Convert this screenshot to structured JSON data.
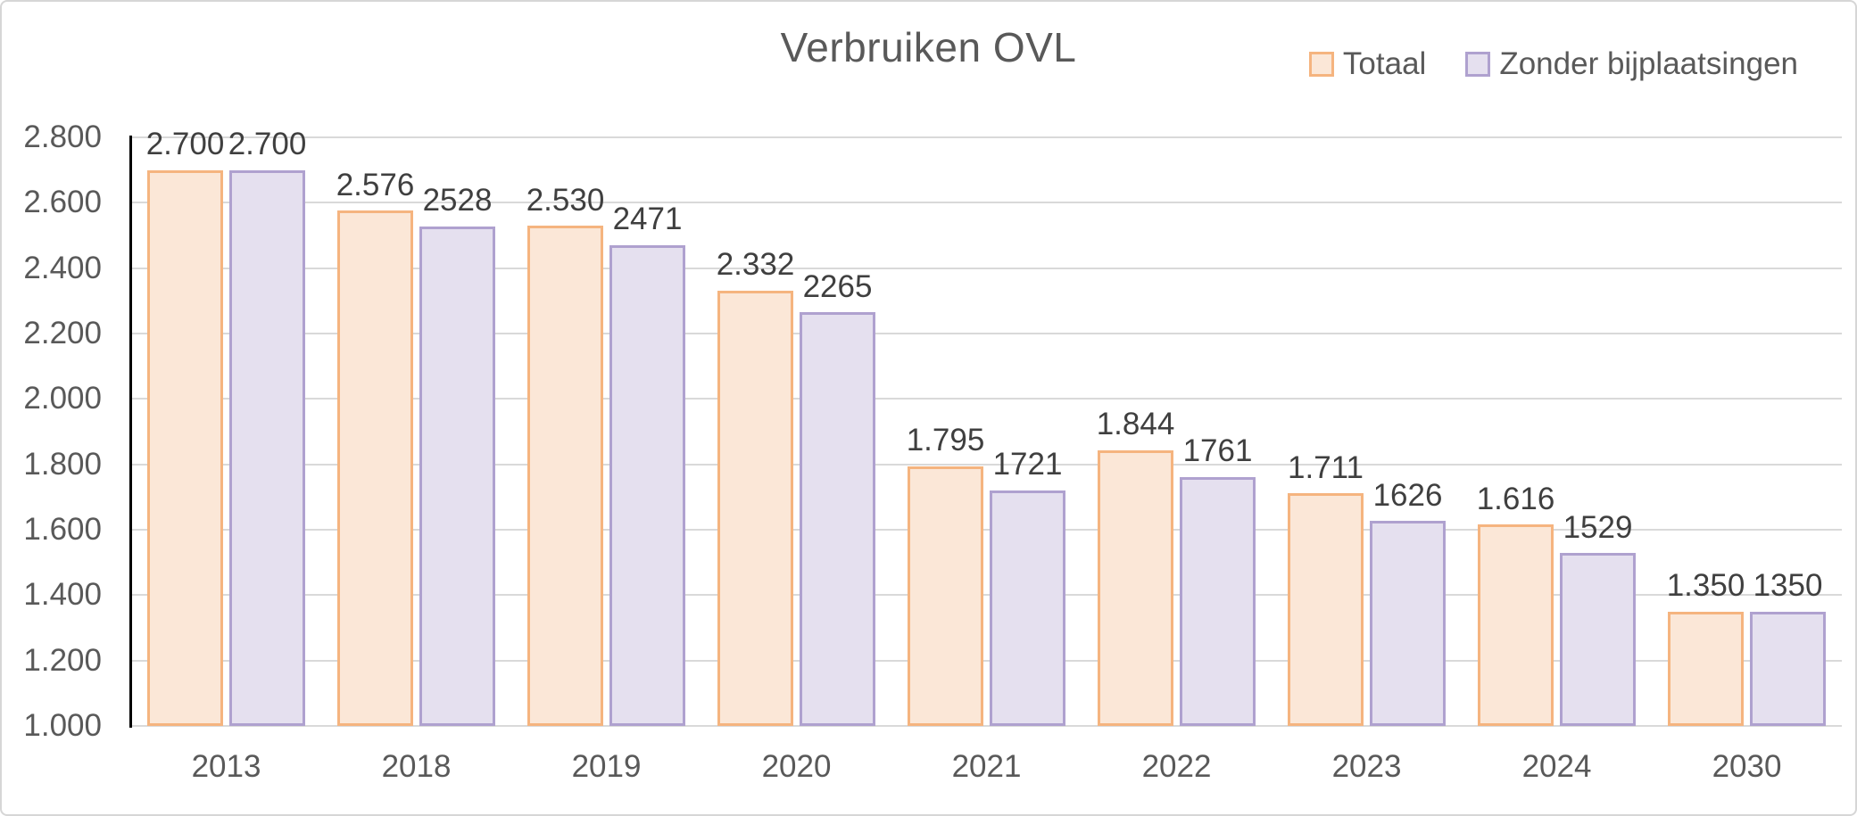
{
  "title": "Verbruiken OVL",
  "legend": {
    "items": [
      {
        "name": "Totaal",
        "fill": "#FBE7D7",
        "border": "#F5B47F"
      },
      {
        "name": "Zonder bijplaatsingen",
        "fill": "#E5E0EF",
        "border": "#AFA1CF"
      }
    ]
  },
  "chart_data": {
    "type": "bar",
    "title": "Verbruiken OVL",
    "categories": [
      "2013",
      "2018",
      "2019",
      "2020",
      "2021",
      "2022",
      "2023",
      "2024",
      "2030"
    ],
    "series": [
      {
        "name": "Totaal",
        "values": [
          2700,
          2576,
          2530,
          2332,
          1795,
          1844,
          1711,
          1616,
          1350
        ],
        "data_labels": [
          "2.700",
          "2.576",
          "2.530",
          "2.332",
          "1.795",
          "1.844",
          "1.711",
          "1.616",
          "1.350"
        ],
        "fill": "#FBE7D7",
        "border": "#F5B47F"
      },
      {
        "name": "Zonder bijplaatsingen",
        "values": [
          2700,
          2528,
          2471,
          2265,
          1721,
          1761,
          1626,
          1529,
          1350
        ],
        "data_labels": [
          "2.700",
          "2528",
          "2471",
          "2265",
          "1721",
          "1761",
          "1626",
          "1529",
          "1350"
        ],
        "fill": "#E5E0EF",
        "border": "#AFA1CF"
      }
    ],
    "ylim": [
      1000,
      2800
    ],
    "yticks": {
      "values": [
        2800,
        2600,
        2400,
        2200,
        2000,
        1800,
        1600,
        1400,
        1200,
        1000
      ],
      "labels": [
        "2.800",
        "2.600",
        "2.400",
        "2.200",
        "2.000",
        "1.800",
        "1.600",
        "1.400",
        "1.200",
        "1.000"
      ]
    },
    "grid": true,
    "legend_position": "top-right",
    "colors": {
      "gridline": "#D9D9D9",
      "y_axis_line": "#000000",
      "axis_text": "#595959",
      "data_label_text": "#3F3F3F",
      "title_text": "#595959"
    }
  }
}
